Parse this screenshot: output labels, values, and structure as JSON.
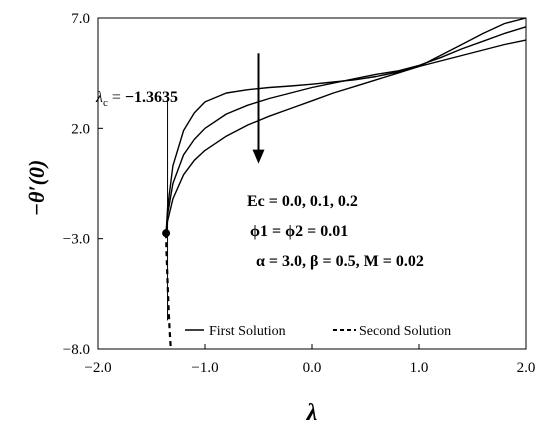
{
  "chart_data": {
    "type": "line",
    "xlabel": "λ",
    "ylabel": "−θ′(0)",
    "xlim": [
      -2.0,
      2.0
    ],
    "ylim": [
      -8.0,
      7.0
    ],
    "x_ticks": [
      "−2.0",
      "−1.0",
      "0.0",
      "1.0",
      "2.0"
    ],
    "y_ticks": [
      "−8.0",
      "−3.0",
      "2.0",
      "7.0"
    ],
    "x_tick_values": [
      -2.0,
      -1.0,
      0.0,
      1.0,
      2.0
    ],
    "y_tick_values": [
      -8.0,
      -3.0,
      2.0,
      7.0
    ],
    "critical_point": {
      "x": -1.3635,
      "y": -2.75
    },
    "critical_label": "λc = −1.3635",
    "critical_label_parts": {
      "symbol": "λ",
      "sub": "c",
      "eq": " = ",
      "value": "−1.3635"
    },
    "annotations": [
      "Ec = 0.0, 0.1, 0.2",
      "ϕ1 = ϕ2 = 0.01",
      "α = 3.0, β = 0.5, M = 0.02"
    ],
    "arrow": {
      "x": -0.5,
      "y_from": 5.4,
      "y_to": 0.4
    },
    "marker_line": {
      "x": -1.35,
      "y_from": 3.3,
      "y_to": -6.7
    },
    "legend": [
      {
        "label": "First Solution",
        "style": "solid"
      },
      {
        "label": "Second Solution",
        "style": "dashed"
      }
    ],
    "series": [
      {
        "kind": "first",
        "style": "solid",
        "x": [
          -1.3635,
          -1.35,
          -1.3,
          -1.2,
          -1.1,
          -1.0,
          -0.8,
          -0.6,
          -0.4,
          -0.2,
          0.0,
          0.2,
          0.4,
          0.6,
          0.8,
          1.0,
          1.2,
          1.4,
          1.6,
          1.8,
          2.0
        ],
        "y": [
          -2.75,
          -1.6,
          0.3,
          1.9,
          2.7,
          3.2,
          3.6,
          3.75,
          3.85,
          3.92,
          4.0,
          4.1,
          4.2,
          4.35,
          4.55,
          4.8,
          5.05,
          5.3,
          5.55,
          5.8,
          6.0
        ]
      },
      {
        "kind": "first",
        "style": "solid",
        "x": [
          -1.3635,
          -1.35,
          -1.3,
          -1.2,
          -1.1,
          -1.0,
          -0.8,
          -0.6,
          -0.4,
          -0.2,
          0.0,
          0.2,
          0.4,
          0.6,
          0.8,
          1.0,
          1.2,
          1.4,
          1.6,
          1.8,
          2.0
        ],
        "y": [
          -2.75,
          -1.9,
          -0.5,
          0.8,
          1.5,
          2.0,
          2.65,
          3.05,
          3.35,
          3.6,
          3.85,
          4.05,
          4.25,
          4.45,
          4.6,
          4.85,
          5.2,
          5.6,
          5.95,
          6.3,
          6.6
        ]
      },
      {
        "kind": "first",
        "style": "solid",
        "x": [
          -1.3635,
          -1.35,
          -1.3,
          -1.2,
          -1.1,
          -1.0,
          -0.8,
          -0.6,
          -0.4,
          -0.2,
          0.0,
          0.2,
          0.4,
          0.6,
          0.8,
          1.0,
          1.2,
          1.4,
          1.6,
          1.8,
          2.0
        ],
        "y": [
          -2.75,
          -2.2,
          -1.2,
          -0.1,
          0.55,
          1.0,
          1.65,
          2.15,
          2.55,
          2.9,
          3.25,
          3.6,
          3.9,
          4.2,
          4.5,
          4.8,
          5.3,
          5.8,
          6.3,
          6.75,
          7.2
        ]
      },
      {
        "kind": "second",
        "style": "dashed",
        "x": [
          -1.3635,
          -1.36,
          -1.35,
          -1.34,
          -1.33,
          -1.32
        ],
        "y": [
          -2.75,
          -3.6,
          -5.0,
          -6.2,
          -7.2,
          -8.0
        ]
      }
    ]
  }
}
